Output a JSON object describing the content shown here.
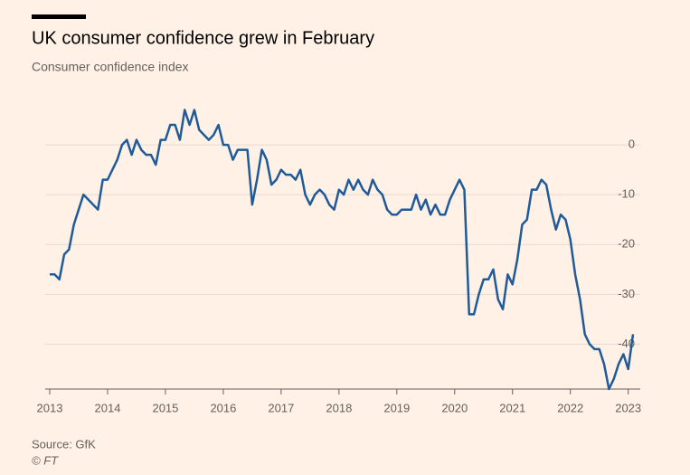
{
  "chart_data": {
    "type": "line",
    "title": "UK consumer confidence grew in February",
    "subtitle": "Consumer confidence index",
    "source": "Source: GfK",
    "credit": "© FT",
    "x": [
      2013,
      2013.083,
      2013.167,
      2013.25,
      2013.333,
      2013.417,
      2013.5,
      2013.583,
      2013.667,
      2013.75,
      2013.833,
      2013.917,
      2014,
      2014.083,
      2014.167,
      2014.25,
      2014.333,
      2014.417,
      2014.5,
      2014.583,
      2014.667,
      2014.75,
      2014.833,
      2014.917,
      2015,
      2015.083,
      2015.167,
      2015.25,
      2015.333,
      2015.417,
      2015.5,
      2015.583,
      2015.667,
      2015.75,
      2015.833,
      2015.917,
      2016,
      2016.083,
      2016.167,
      2016.25,
      2016.333,
      2016.417,
      2016.5,
      2016.583,
      2016.667,
      2016.75,
      2016.833,
      2016.917,
      2017,
      2017.083,
      2017.167,
      2017.25,
      2017.333,
      2017.417,
      2017.5,
      2017.583,
      2017.667,
      2017.75,
      2017.833,
      2017.917,
      2018,
      2018.083,
      2018.167,
      2018.25,
      2018.333,
      2018.417,
      2018.5,
      2018.583,
      2018.667,
      2018.75,
      2018.833,
      2018.917,
      2019,
      2019.083,
      2019.167,
      2019.25,
      2019.333,
      2019.417,
      2019.5,
      2019.583,
      2019.667,
      2019.75,
      2019.833,
      2019.917,
      2020,
      2020.083,
      2020.167,
      2020.25,
      2020.333,
      2020.417,
      2020.5,
      2020.583,
      2020.667,
      2020.75,
      2020.833,
      2020.917,
      2021,
      2021.083,
      2021.167,
      2021.25,
      2021.333,
      2021.417,
      2021.5,
      2021.583,
      2021.667,
      2021.75,
      2021.833,
      2021.917,
      2022,
      2022.083,
      2022.167,
      2022.25,
      2022.333,
      2022.417,
      2022.5,
      2022.583,
      2022.667,
      2022.75,
      2022.833,
      2022.917,
      2023,
      2023.083
    ],
    "series": [
      {
        "name": "Consumer confidence index",
        "color": "#1f5a99",
        "values": [
          -26,
          -26,
          -27,
          -22,
          -21,
          -16,
          -13,
          -10,
          -11,
          -12,
          -13,
          -7,
          -7,
          -5,
          -3,
          0,
          1,
          -2,
          1,
          -1,
          -2,
          -2,
          -4,
          1,
          1,
          4,
          4,
          1,
          7,
          4,
          7,
          3,
          2,
          1,
          2,
          4,
          0,
          0,
          -3,
          -1,
          -1,
          -1,
          -12,
          -7,
          -1,
          -3,
          -8,
          -7,
          -5,
          -6,
          -6,
          -7,
          -5,
          -10,
          -12,
          -10,
          -9,
          -10,
          -12,
          -13,
          -9,
          -10,
          -7,
          -9,
          -7,
          -9,
          -10,
          -7,
          -9,
          -10,
          -13,
          -14,
          -14,
          -13,
          -13,
          -13,
          -10,
          -13,
          -11,
          -14,
          -12,
          -14,
          -14,
          -11,
          -9,
          -7,
          -9,
          -34,
          -34,
          -30,
          -27,
          -27,
          -25,
          -31,
          -33,
          -26,
          -28,
          -23,
          -16,
          -15,
          -9,
          -9,
          -7,
          -8,
          -13,
          -17,
          -14,
          -15,
          -19,
          -26,
          -31,
          -38,
          -40,
          -41,
          -41,
          -44,
          -49,
          -47,
          -44,
          -42,
          -45,
          -38
        ]
      }
    ],
    "xlim": [
      2013,
      2023.083
    ],
    "xticks": [
      2013,
      2014,
      2015,
      2016,
      2017,
      2018,
      2019,
      2020,
      2021,
      2022,
      2023
    ],
    "ylim": [
      -49,
      10
    ],
    "yticks": [
      0,
      -10,
      -20,
      -30,
      -40
    ],
    "grid": true
  }
}
